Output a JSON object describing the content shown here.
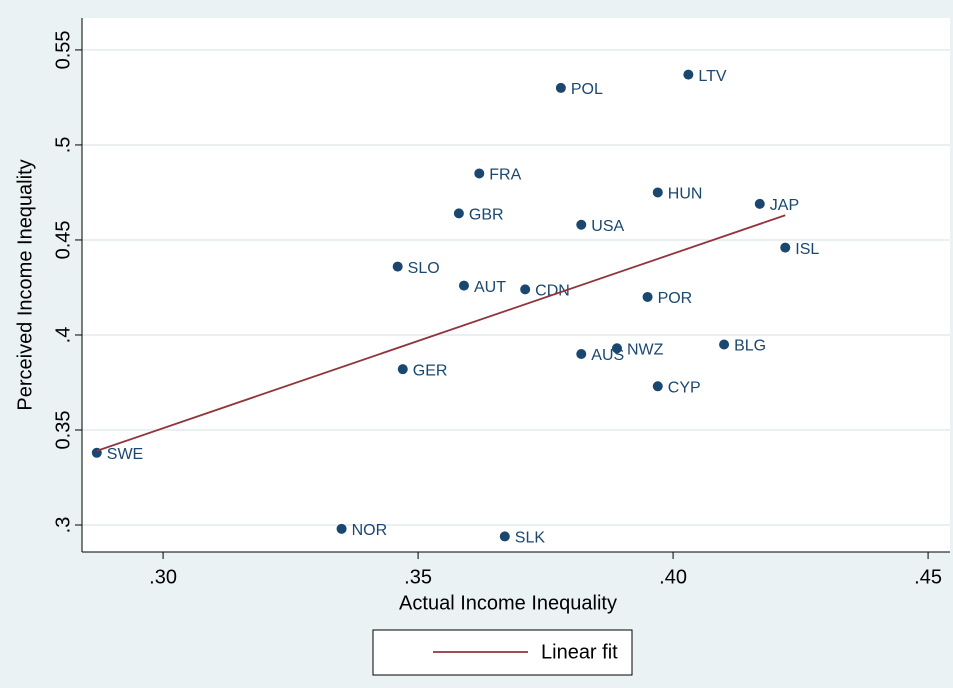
{
  "chart_data": {
    "type": "scatter",
    "x_label": "Actual Income Inequality",
    "y_label": "Perceived Income Inequality",
    "xlim": [
      0.2841,
      0.4543
    ],
    "ylim": [
      0.2858,
      0.5668
    ],
    "xticks": [
      {
        "value": 0.3,
        "label": ".30"
      },
      {
        "value": 0.35,
        "label": ".35"
      },
      {
        "value": 0.4,
        "label": ".40"
      },
      {
        "value": 0.45,
        "label": ".45"
      }
    ],
    "yticks": [
      {
        "value": 0.3,
        "label": ".3"
      },
      0.35,
      {
        "value": 0.4,
        "label": ".4"
      },
      0.45,
      {
        "value": 0.5,
        "label": ".5"
      },
      0.55
    ],
    "grid": true,
    "series": [
      {
        "color": "#1a476f",
        "labels": [
          "SWE",
          "NOR",
          "SLK",
          "GER",
          "SLO",
          "AUT",
          "GBR",
          "FRA",
          "CDN",
          "POL",
          "USA",
          "AUS",
          "NWZ",
          "POR",
          "CYP",
          "HUN",
          "LTV",
          "BLG",
          "JAP",
          "ISL"
        ],
        "x": [
          0.287,
          0.335,
          0.367,
          0.347,
          0.346,
          0.359,
          0.358,
          0.362,
          0.371,
          0.378,
          0.382,
          0.382,
          0.389,
          0.395,
          0.397,
          0.397,
          0.403,
          0.41,
          0.417,
          0.422
        ],
        "values": [
          0.338,
          0.298,
          0.294,
          0.382,
          0.436,
          0.426,
          0.464,
          0.485,
          0.424,
          0.53,
          0.458,
          0.39,
          0.393,
          0.42,
          0.373,
          0.475,
          0.537,
          0.395,
          0.469,
          0.446
        ]
      },
      {
        "name": "Linear fit",
        "color": "#90353b",
        "mode": "line",
        "x": [
          0.287,
          0.422
        ],
        "values": [
          0.339,
          0.463
        ]
      }
    ]
  }
}
